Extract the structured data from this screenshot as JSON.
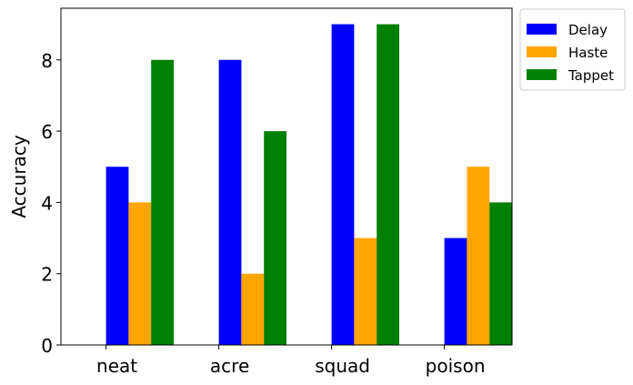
{
  "chart_data": {
    "type": "bar",
    "title": "",
    "xlabel": "",
    "ylabel": "Accuracy",
    "categories": [
      "neat",
      "acre",
      "squad",
      "poison"
    ],
    "series": [
      {
        "name": "Delay",
        "color": "#0000ff",
        "values": [
          5,
          8,
          9,
          3
        ]
      },
      {
        "name": "Haste",
        "color": "#ffa500",
        "values": [
          4,
          2,
          3,
          5
        ]
      },
      {
        "name": "Tappet",
        "color": "#008000",
        "values": [
          8,
          6,
          9,
          4
        ]
      }
    ],
    "ylim": [
      0,
      9.45
    ],
    "yticks": [
      0,
      2,
      4,
      6,
      8
    ],
    "grid": false,
    "legend_position": "outside top-right"
  }
}
